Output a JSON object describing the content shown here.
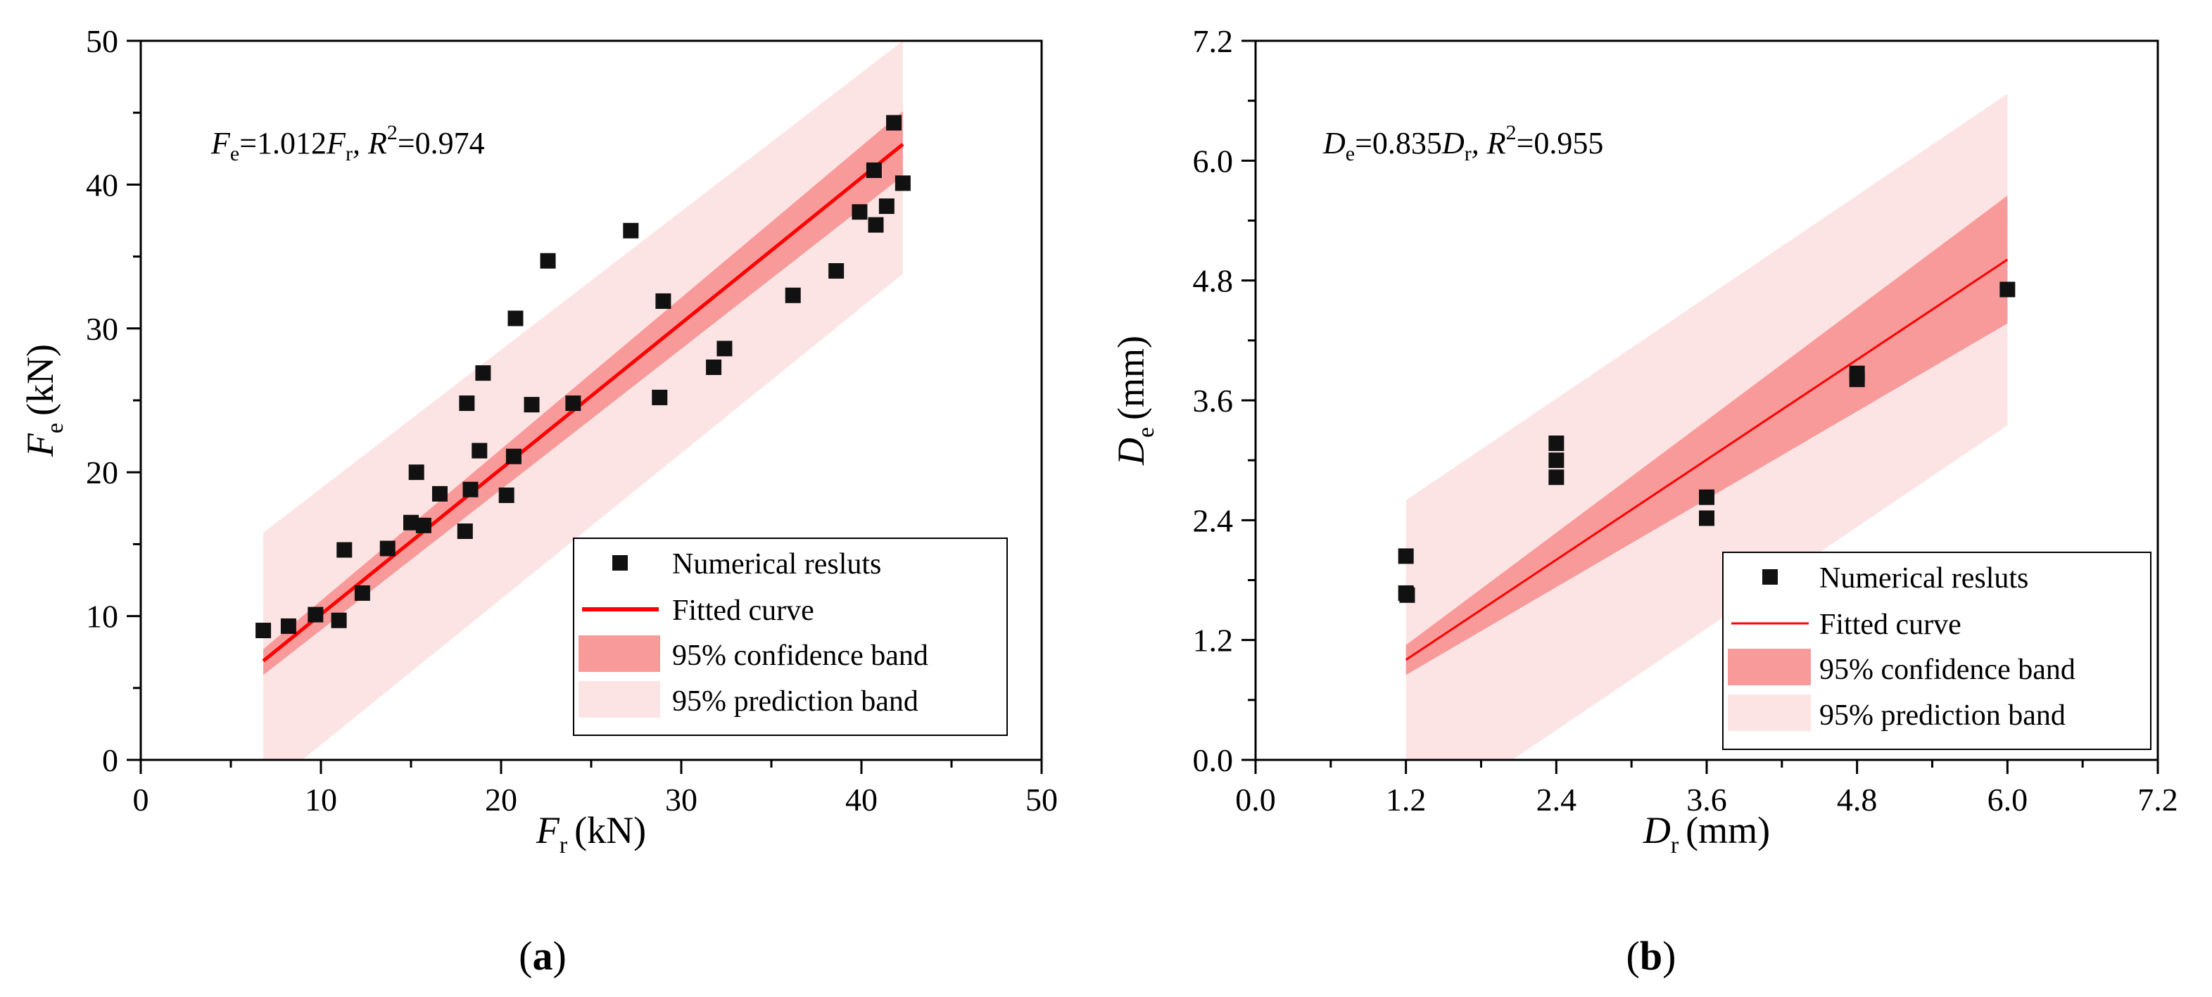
{
  "chart_data": [
    {
      "id": "a",
      "type": "scatter",
      "panel_label": "a",
      "xlabel": {
        "symbol": "F",
        "subscript": "r",
        "unit": "(kN)"
      },
      "ylabel": {
        "symbol": "F",
        "subscript": "e",
        "unit": "(kN)"
      },
      "xlim": [
        0,
        50
      ],
      "ylim": [
        0,
        50
      ],
      "xticks": [
        0,
        10,
        20,
        30,
        40,
        50
      ],
      "yticks": [
        0,
        10,
        20,
        30,
        40,
        50
      ],
      "xticklabels": [
        "0",
        "10",
        "20",
        "30",
        "40",
        "50"
      ],
      "yticklabels": [
        "0",
        "10",
        "20",
        "30",
        "40",
        "50"
      ],
      "equation": {
        "lhs": "F",
        "lhs_sub": "e",
        "coef": "=1.012",
        "rhs": "F",
        "rhs_sub": "r",
        "r2_prefix": ", R",
        "r2_sup": "2",
        "r2_value": "=0.974"
      },
      "fit_range": [
        6.8,
        42.3
      ],
      "fit": {
        "slope": 1.012,
        "intercept": 0
      },
      "confidence_band": {
        "lower_start": 5.9,
        "upper_start": 7.7,
        "lower_end": 40.6,
        "upper_end": 45.1
      },
      "prediction_band": {
        "lower_start": -2.2,
        "upper_start": 15.8,
        "lower_end": 33.8,
        "upper_end": 51.9
      },
      "points": [
        [
          6.8,
          9.0
        ],
        [
          8.2,
          9.3
        ],
        [
          9.7,
          10.1
        ],
        [
          11.0,
          9.7
        ],
        [
          11.3,
          14.6
        ],
        [
          12.3,
          11.6
        ],
        [
          13.7,
          14.7
        ],
        [
          15.0,
          16.5
        ],
        [
          15.3,
          20.0
        ],
        [
          15.7,
          16.3
        ],
        [
          16.6,
          18.5
        ],
        [
          18.0,
          15.9
        ],
        [
          18.1,
          24.8
        ],
        [
          18.3,
          18.8
        ],
        [
          18.8,
          21.5
        ],
        [
          19.0,
          26.9
        ],
        [
          20.3,
          18.4
        ],
        [
          20.7,
          21.1
        ],
        [
          20.8,
          30.7
        ],
        [
          21.7,
          24.7
        ],
        [
          22.6,
          34.7
        ],
        [
          24.0,
          24.8
        ],
        [
          27.2,
          36.8
        ],
        [
          28.8,
          25.2
        ],
        [
          29.0,
          31.9
        ],
        [
          31.8,
          27.3
        ],
        [
          32.4,
          28.6
        ],
        [
          36.2,
          32.3
        ],
        [
          38.6,
          34.0
        ],
        [
          39.9,
          38.1
        ],
        [
          40.7,
          41.0
        ],
        [
          40.8,
          37.2
        ],
        [
          41.4,
          38.5
        ],
        [
          41.8,
          44.3
        ],
        [
          42.3,
          40.1
        ]
      ],
      "legend": [
        {
          "label": "Numerical resluts",
          "kind": "marker"
        },
        {
          "label": "Fitted curve",
          "kind": "line"
        },
        {
          "label": "95% confidence band",
          "kind": "confidence"
        },
        {
          "label": "95% prediction band",
          "kind": "prediction"
        }
      ],
      "legend_position": "bottom-right",
      "colors": {
        "line": "#ff0000",
        "confidence": "#f89a9a",
        "prediction": "#fde4e4",
        "marker": "#111111"
      }
    },
    {
      "id": "b",
      "type": "scatter",
      "panel_label": "b",
      "xlabel": {
        "symbol": "D",
        "subscript": "r",
        "unit": "(mm)"
      },
      "ylabel": {
        "symbol": "D",
        "subscript": "e",
        "unit": "(mm)"
      },
      "xlim": [
        0,
        7.2
      ],
      "ylim": [
        0,
        7.2
      ],
      "xticks": [
        0,
        1.2,
        2.4,
        3.6,
        4.8,
        6.0,
        7.2
      ],
      "yticks": [
        0,
        1.2,
        2.4,
        3.6,
        4.8,
        6.0,
        7.2
      ],
      "xticklabels": [
        "0.0",
        "1.2",
        "2.4",
        "3.6",
        "4.8",
        "6.0",
        "7.2"
      ],
      "yticklabels": [
        "0.0",
        "1.2",
        "2.4",
        "3.6",
        "4.8",
        "6.0",
        "7.2"
      ],
      "equation": {
        "lhs": "D",
        "lhs_sub": "e",
        "coef": "=0.835",
        "rhs": "D",
        "rhs_sub": "r",
        "r2_prefix": ", R",
        "r2_sup": "2",
        "r2_value": "=0.955"
      },
      "fit_range": [
        1.2,
        6.0
      ],
      "fit": {
        "slope": 0.835,
        "intercept": 0
      },
      "confidence_band": {
        "lower_start": 0.85,
        "upper_start": 1.15,
        "lower_end": 4.37,
        "upper_end": 5.65
      },
      "prediction_band": {
        "lower_start": -0.72,
        "upper_start": 2.6,
        "lower_end": 3.35,
        "upper_end": 6.67
      },
      "points": [
        [
          1.2,
          2.04
        ],
        [
          1.2,
          1.67
        ],
        [
          1.21,
          1.65
        ],
        [
          2.4,
          3.17
        ],
        [
          2.4,
          3.0
        ],
        [
          2.4,
          2.83
        ],
        [
          3.6,
          2.63
        ],
        [
          3.6,
          2.42
        ],
        [
          4.8,
          3.87
        ],
        [
          4.8,
          3.81
        ],
        [
          6.0,
          4.71
        ]
      ],
      "legend": [
        {
          "label": "Numerical resluts",
          "kind": "marker"
        },
        {
          "label": "Fitted curve",
          "kind": "line"
        },
        {
          "label": "95% confidence band",
          "kind": "confidence"
        },
        {
          "label": "95% prediction band",
          "kind": "prediction"
        }
      ],
      "legend_position": "bottom-right",
      "colors": {
        "line": "#ff0000",
        "confidence": "#f89a9a",
        "prediction": "#fde4e4",
        "marker": "#111111"
      }
    }
  ]
}
